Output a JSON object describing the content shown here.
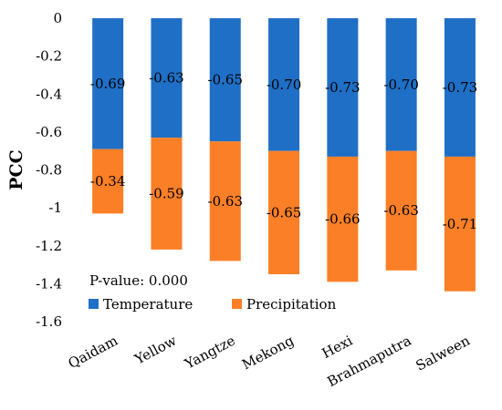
{
  "chart_data": {
    "type": "bar",
    "stacked": true,
    "title": "",
    "xlabel": "",
    "ylabel": "PCC",
    "ylim": [
      -1.6,
      0
    ],
    "yticks": [
      "0",
      "-0.2",
      "-0.4",
      "-0.6",
      "-0.8",
      "-1",
      "-1.2",
      "-1.4",
      "-1.6"
    ],
    "grid": false,
    "legend_position": "bottom-left",
    "annotation": "P-value: 0.000",
    "categories": [
      "Qaidam",
      "Yellow",
      "Yangtze",
      "Mekong",
      "Hexi",
      "Brahmaputra",
      "Salween"
    ],
    "series": [
      {
        "name": "Temperature",
        "color": "#1f6fc6",
        "values": [
          -0.69,
          -0.63,
          -0.65,
          -0.7,
          -0.73,
          -0.7,
          -0.73
        ],
        "labels": [
          "-0.69",
          "-0.63",
          "-0.65",
          "-0.70",
          "-0.73",
          "-0.70",
          "-0.73"
        ]
      },
      {
        "name": "Precipitation",
        "color": "#fb7f26",
        "values": [
          -0.34,
          -0.59,
          -0.63,
          -0.65,
          -0.66,
          -0.63,
          -0.71
        ],
        "labels": [
          "-0.34",
          "-0.59",
          "-0.63",
          "-0.65",
          "-0.66",
          "-0.63",
          "-0.71"
        ]
      }
    ]
  }
}
